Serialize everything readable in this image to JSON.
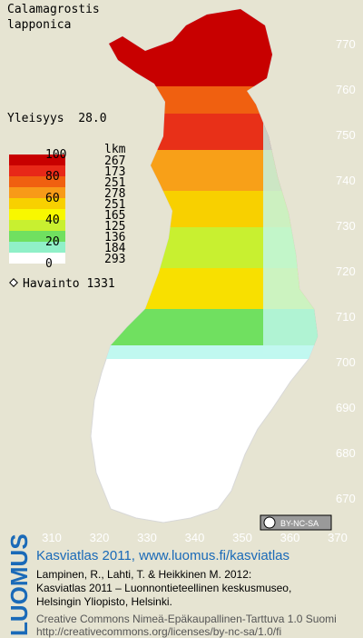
{
  "header": {
    "title_line1": "Calamagrostis",
    "title_line2": "lapponica",
    "frequency": "Yleisyys  28.0"
  },
  "legend": {
    "scale_labels": [
      "100",
      "80",
      "60",
      "40",
      "20",
      "0"
    ],
    "counts_title": "lkm",
    "counts": [
      "267",
      "173",
      "251",
      "278",
      "251",
      "165",
      "125",
      "136",
      "184",
      "293"
    ],
    "colors": [
      "#c80000",
      "#e82818",
      "#f06010",
      "#f89a18",
      "#f8d000",
      "#f8f800",
      "#c8f030",
      "#70e060",
      "#90f0c8",
      "#ffffff"
    ],
    "observations": "Havainto 1331"
  },
  "map": {
    "northing_labels": [
      "770",
      "760",
      "750",
      "740",
      "730",
      "720",
      "710",
      "700",
      "690",
      "680",
      "670"
    ],
    "easting_labels": [
      "310",
      "320",
      "330",
      "340",
      "350",
      "360",
      "370"
    ]
  },
  "license_badge": "BY-NC-SA",
  "footer": {
    "logo": "LUOMUS",
    "heading": "Kasviatlas 2011, www.luomus.fi/kasviatlas",
    "citation_line1": "Lampinen, R., Lahti, T. & Heikkinen M. 2012:",
    "citation_line2": "Kasviatlas 2011 – Luonnontieteellinen keskusmuseo,",
    "citation_line3": "Helsingin Yliopisto, Helsinki.",
    "license_line1": "Creative Commons Nimeä-Epäkaupallinen-Tarttuva 1.0 Suomi",
    "license_line2": "http://creativecommons.org/licenses/by-nc-sa/1.0/fi"
  }
}
